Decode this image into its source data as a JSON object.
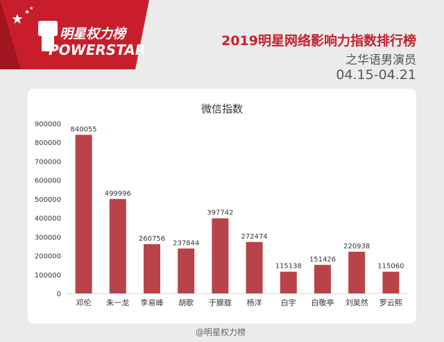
{
  "brand": {
    "name_cn": "明星权力榜",
    "name_en": "POWERSTAR"
  },
  "header": {
    "title": "2019明星网络影响力指数排行榜",
    "subtitle": "之华语男演员",
    "date_range": "04.15-04.21"
  },
  "footer": {
    "watermark": "@明星权力榜"
  },
  "colors": {
    "brand_red": "#c81e2c",
    "bar_red": "#b84449"
  },
  "chart_data": {
    "type": "bar",
    "title": "微信指数",
    "categories": [
      "邓伦",
      "朱一龙",
      "李易峰",
      "胡歌",
      "于朦胧",
      "杨洋",
      "白宇",
      "白敬亭",
      "刘昊然",
      "罗云熙"
    ],
    "values": [
      840055,
      499996,
      260756,
      237844,
      397742,
      272474,
      115138,
      151426,
      220938,
      115060
    ],
    "ylim": [
      0,
      900000
    ],
    "yticks": [
      0,
      100000,
      200000,
      300000,
      400000,
      500000,
      600000,
      700000,
      800000,
      900000
    ],
    "ytick_labels": [
      "0",
      "100000",
      "200000",
      "300000",
      "400000",
      "500000",
      "600000",
      "700000",
      "800000",
      "900000"
    ],
    "xlabel": "",
    "ylabel": "",
    "grid": false,
    "data_labels": true
  }
}
